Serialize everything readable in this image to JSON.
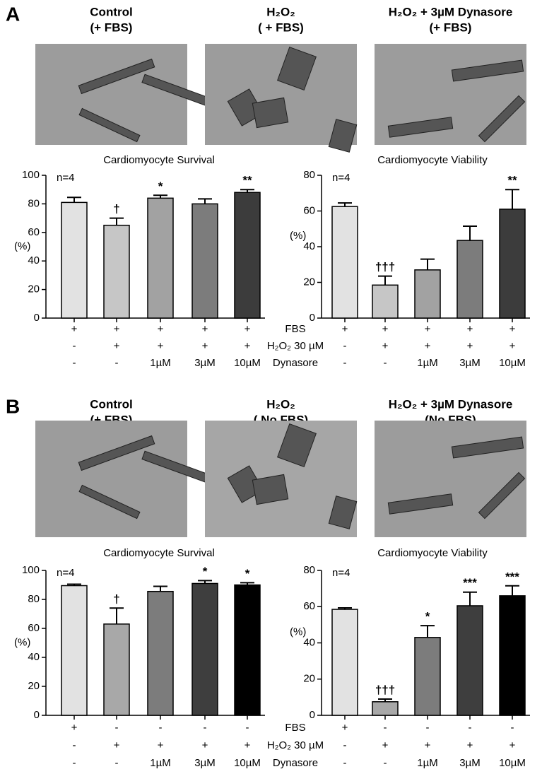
{
  "panels": [
    {
      "label": "A",
      "images": [
        {
          "title": [
            "Control",
            "(+ FBS)"
          ]
        },
        {
          "title": [
            "H₂O₂",
            "( + FBS)"
          ]
        },
        {
          "title": [
            "H₂O₂ + 3µM Dynasore",
            "(+ FBS)"
          ]
        }
      ],
      "condition_names": [
        "FBS",
        "H₂O₂ 30 µM",
        "Dynasore"
      ]
    },
    {
      "label": "B",
      "images": [
        {
          "title": [
            "Control",
            "(+ FBS)"
          ]
        },
        {
          "title": [
            "H₂O₂",
            "( No FBS)"
          ]
        },
        {
          "title": [
            "H₂O₂ + 3µM Dynasore",
            "(No FBS)"
          ]
        }
      ],
      "condition_names": [
        "FBS",
        "H₂O₂ 30 µM",
        "Dynasore"
      ]
    }
  ],
  "chart_data": [
    {
      "type": "bar",
      "title": "Cardiomyocyte Survival",
      "ylabel": "(%)",
      "n_label": "n=4",
      "values": [
        81,
        65,
        84,
        80,
        88
      ],
      "errors": [
        3.5,
        5,
        2,
        3.5,
        2
      ],
      "annotations": [
        null,
        "†",
        "*",
        null,
        "**"
      ],
      "colors": [
        "#e2e2e2",
        "#c6c6c6",
        "#a2a2a2",
        "#7c7c7c",
        "#3c3c3c"
      ],
      "conditions": [
        [
          "+",
          "+",
          "+",
          "+",
          "+"
        ],
        [
          "-",
          "+",
          "+",
          "+",
          "+"
        ],
        [
          "-",
          "-",
          "1µM",
          "3µM",
          "10µM"
        ]
      ],
      "ylim": [
        0,
        100
      ],
      "yticks": [
        0,
        20,
        40,
        60,
        80,
        100
      ]
    },
    {
      "type": "bar",
      "title": "Cardiomyocyte Viability",
      "ylabel": "(%)",
      "n_label": "n=4",
      "values": [
        62.5,
        18.5,
        27,
        43.5,
        61
      ],
      "errors": [
        2,
        5,
        6,
        8,
        11
      ],
      "annotations": [
        null,
        "†††",
        null,
        null,
        "**"
      ],
      "colors": [
        "#e2e2e2",
        "#c6c6c6",
        "#a2a2a2",
        "#7c7c7c",
        "#3c3c3c"
      ],
      "conditions": [
        [
          "+",
          "+",
          "+",
          "+",
          "+"
        ],
        [
          "-",
          "+",
          "+",
          "+",
          "+"
        ],
        [
          "-",
          "-",
          "1µM",
          "3µM",
          "10µM"
        ]
      ],
      "ylim": [
        0,
        80
      ],
      "yticks": [
        0,
        20,
        40,
        60,
        80
      ]
    },
    {
      "type": "bar",
      "title": "Cardiomyocyte Survival",
      "ylabel": "(%)",
      "n_label": "n=4",
      "values": [
        89.5,
        63,
        85.5,
        91,
        90
      ],
      "errors": [
        1,
        11,
        3.5,
        2,
        1.5
      ],
      "annotations": [
        null,
        "†",
        null,
        "*",
        "*"
      ],
      "colors": [
        "#e2e2e2",
        "#a8a8a8",
        "#7c7c7c",
        "#3e3e3e",
        "#000000"
      ],
      "conditions": [
        [
          "+",
          "-",
          "-",
          "-",
          "-"
        ],
        [
          "-",
          "+",
          "+",
          "+",
          "+"
        ],
        [
          "-",
          "-",
          "1µM",
          "3µM",
          "10µM"
        ]
      ],
      "ylim": [
        0,
        100
      ],
      "yticks": [
        0,
        20,
        40,
        60,
        80,
        100
      ]
    },
    {
      "type": "bar",
      "title": "Cardiomyocyte Viability",
      "ylabel": "(%)",
      "n_label": "n=4",
      "values": [
        58.5,
        7.5,
        43,
        60.5,
        66
      ],
      "errors": [
        0.8,
        1.5,
        6.5,
        7.5,
        5.5
      ],
      "annotations": [
        null,
        "†††",
        "*",
        "***",
        "***"
      ],
      "colors": [
        "#e2e2e2",
        "#a8a8a8",
        "#7c7c7c",
        "#3e3e3e",
        "#000000"
      ],
      "conditions": [
        [
          "+",
          "-",
          "-",
          "-",
          "-"
        ],
        [
          "-",
          "+",
          "+",
          "+",
          "+"
        ],
        [
          "-",
          "-",
          "1µM",
          "3µM",
          "10µM"
        ]
      ],
      "ylim": [
        0,
        80
      ],
      "yticks": [
        0,
        20,
        40,
        60,
        80
      ]
    }
  ]
}
